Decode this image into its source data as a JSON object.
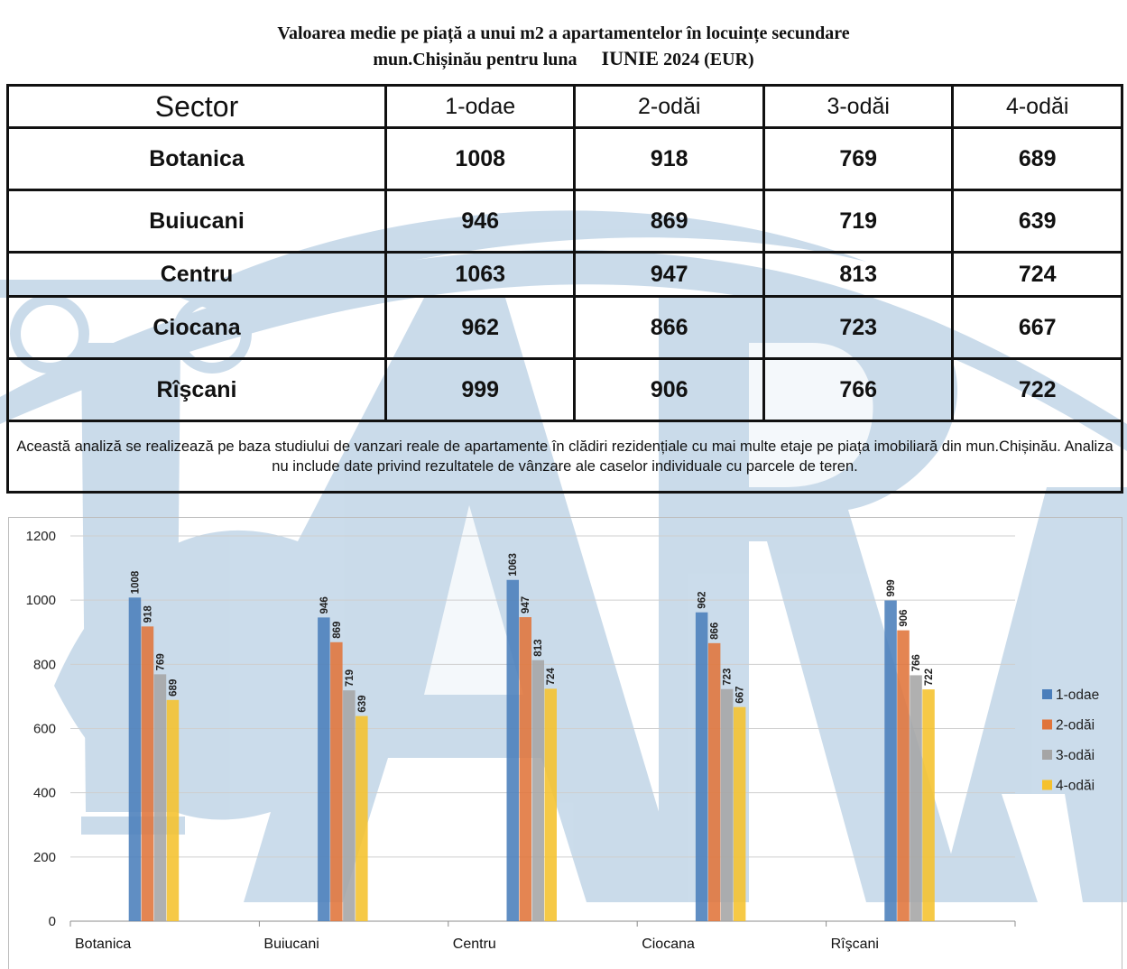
{
  "title": {
    "line1": "Valoarea medie pe piață a unui m2 a apartamentelor în locuințe secundare",
    "line2": "mun.Chișinău pentru luna",
    "month": "IUNIE",
    "year_unit": "2024 (EUR)"
  },
  "table": {
    "headers": [
      "Sector",
      "1-odae",
      "2-odăi",
      "3-odăi",
      "4-odăi"
    ],
    "rows": [
      {
        "sector": "Botanica",
        "values": [
          "1008",
          "918",
          "769",
          "689"
        ]
      },
      {
        "sector": "Buiucani",
        "values": [
          "946",
          "869",
          "719",
          "639"
        ]
      },
      {
        "sector": "Centru",
        "values": [
          "1063",
          "947",
          "813",
          "724"
        ]
      },
      {
        "sector": "Ciocana",
        "values": [
          "962",
          "866",
          "723",
          "667"
        ]
      },
      {
        "sector": "Rîşcani",
        "values": [
          "999",
          "906",
          "766",
          "722"
        ]
      }
    ],
    "note": "Această analiză se realizează pe baza studiului de vanzari reale de apartamente în clădiri rezidențiale cu mai multe etaje pe piața imobiliară din mun.Chișinău. Analiza nu include date privind rezultatele de vânzare ale caselor individuale cu parcele de teren."
  },
  "watermark": {
    "text": "ARA",
    "color": "#b9d0e4"
  },
  "chart_data": {
    "type": "bar",
    "categories": [
      "Botanica",
      "Buiucani",
      "Centru",
      "Ciocana",
      "Rîşcani"
    ],
    "series": [
      {
        "name": "1-odae",
        "values": [
          1008,
          946,
          1063,
          962,
          999
        ],
        "color": "#4a7ebb"
      },
      {
        "name": "2-odăi",
        "values": [
          918,
          869,
          947,
          866,
          906
        ],
        "color": "#e0743a"
      },
      {
        "name": "3-odăi",
        "values": [
          769,
          719,
          813,
          723,
          766
        ],
        "color": "#a5a5a5"
      },
      {
        "name": "4-odăi",
        "values": [
          689,
          639,
          724,
          667,
          722
        ],
        "color": "#f5c12c"
      }
    ],
    "yticks": [
      0,
      200,
      400,
      600,
      800,
      1000,
      1200
    ],
    "ylim": [
      0,
      1200
    ],
    "grid": true,
    "legend": "right",
    "data_labels": true
  }
}
